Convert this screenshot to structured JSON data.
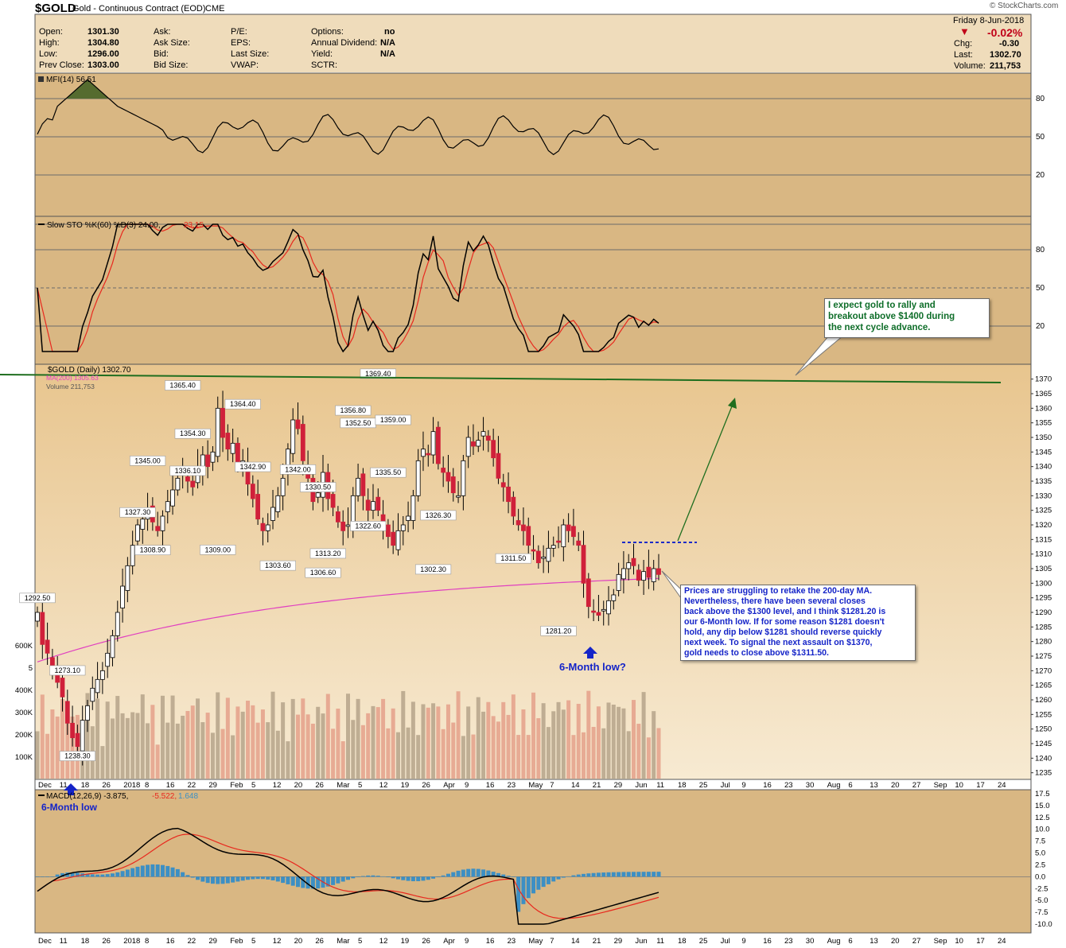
{
  "header": {
    "symbol": "$GOLD",
    "name": "Gold - Continuous Contract (EOD)",
    "exchange": "CME",
    "watermark": "© StockCharts.com",
    "quote": {
      "open_label": "Open:",
      "open": "1301.30",
      "high_label": "High:",
      "high": "1304.80",
      "low_label": "Low:",
      "low": "1296.00",
      "prev_label": "Prev Close:",
      "prev": "1303.00",
      "ask_label": "Ask:",
      "asksize_label": "Ask Size:",
      "bid_label": "Bid:",
      "bidsize_label": "Bid Size:",
      "pe_label": "P/E:",
      "eps_label": "EPS:",
      "lastsize_label": "Last Size:",
      "vwap_label": "VWAP:",
      "options_label": "Options:",
      "options": "no",
      "div_label": "Annual Dividend:",
      "div": "N/A",
      "yield_label": "Yield:",
      "yield": "N/A",
      "sctr_label": "SCTR:"
    },
    "right": {
      "date": "Friday   8-Jun-2018",
      "pct": "-0.02%",
      "chg_label": "Chg:",
      "chg": "-0.30",
      "last_label": "Last:",
      "last": "1302.70",
      "vol_label": "Volume:",
      "vol": "211,753"
    }
  },
  "colors": {
    "panel_bg": "#d9b783",
    "price_bg": "#efdcbb",
    "up_candle": "#ffffff",
    "down_candle": "#d0203a",
    "ma200": "#e040c0",
    "stoch_k": "#000000",
    "stoch_d": "#e8281e",
    "resistance": "#1f6e1f",
    "mfi_fill": "#556b2f",
    "macd_hist": "#3c8fc4",
    "note_green": "#0f6e2a",
    "note_blue": "#1524c8"
  },
  "chart_data": {
    "type": "candlestick",
    "x_labels": [
      "Dec",
      "11",
      "18",
      "26",
      "2018",
      "8",
      "16",
      "22",
      "29",
      "Feb",
      "5",
      "12",
      "20",
      "26",
      "Mar",
      "5",
      "12",
      "19",
      "26",
      "Apr",
      "9",
      "16",
      "23",
      "May",
      "7",
      "14",
      "21",
      "29",
      "Jun",
      "11",
      "18",
      "25",
      "Jul",
      "9",
      "16",
      "23",
      "30",
      "Aug",
      "6",
      "13",
      "20",
      "27",
      "Sep",
      "10",
      "17",
      "24"
    ],
    "price_axis": [
      1235,
      1240,
      1245,
      1250,
      1255,
      1260,
      1265,
      1270,
      1275,
      1280,
      1285,
      1290,
      1295,
      1300,
      1305,
      1310,
      1315,
      1320,
      1325,
      1330,
      1335,
      1340,
      1345,
      1350,
      1355,
      1360,
      1365,
      1370
    ],
    "price_range": [
      1233,
      1374
    ],
    "volume_axis": [
      "100K",
      "200K",
      "300K",
      "400K",
      "5",
      "600K"
    ],
    "closes": [
      1290,
      1279,
      1276,
      1270,
      1266,
      1261,
      1252,
      1247,
      1244,
      1253,
      1258,
      1264,
      1267,
      1270,
      1276,
      1282,
      1290,
      1299,
      1306,
      1313,
      1320,
      1322,
      1325,
      1321,
      1318,
      1323,
      1328,
      1332,
      1336,
      1338,
      1335,
      1333,
      1340,
      1344,
      1340,
      1345,
      1360,
      1350,
      1346,
      1348,
      1340,
      1342,
      1334,
      1329,
      1322,
      1318,
      1320,
      1326,
      1330,
      1336,
      1346,
      1356,
      1353,
      1342,
      1336,
      1328,
      1331,
      1338,
      1329,
      1326,
      1321,
      1318,
      1320,
      1330,
      1336,
      1330,
      1325,
      1328,
      1325,
      1320,
      1316,
      1313,
      1318,
      1320,
      1323,
      1330,
      1342,
      1346,
      1344,
      1352,
      1341,
      1338,
      1335,
      1331,
      1330,
      1342,
      1350,
      1347,
      1349,
      1352,
      1349,
      1343,
      1336,
      1333,
      1328,
      1323,
      1320,
      1318,
      1313,
      1311,
      1307,
      1309,
      1312,
      1313,
      1314,
      1320,
      1318,
      1316,
      1313,
      1300,
      1292,
      1290,
      1289,
      1291,
      1294,
      1296,
      1303,
      1305,
      1307,
      1306,
      1301,
      1304,
      1302,
      1305,
      1303
    ],
    "labels": [
      {
        "text": "1292.50"
      },
      {
        "text": "1273.10"
      },
      {
        "text": "1238.30"
      },
      {
        "text": "1327.30"
      },
      {
        "text": "1308.90"
      },
      {
        "text": "1345.00"
      },
      {
        "text": "1365.40"
      },
      {
        "text": "1354.30"
      },
      {
        "text": "1336.10"
      },
      {
        "text": "1364.40"
      },
      {
        "text": "1309.00"
      },
      {
        "text": "1342.90"
      },
      {
        "text": "1303.60"
      },
      {
        "text": "1342.00"
      },
      {
        "text": "1330.50"
      },
      {
        "text": "1313.20"
      },
      {
        "text": "1356.80"
      },
      {
        "text": "1306.60"
      },
      {
        "text": "1352.50"
      },
      {
        "text": "1322.60"
      },
      {
        "text": "1369.40"
      },
      {
        "text": "1359.00"
      },
      {
        "text": "1335.50"
      },
      {
        "text": "1326.30"
      },
      {
        "text": "1302.30"
      },
      {
        "text": "1311.50"
      },
      {
        "text": "1281.20"
      }
    ],
    "mfi": {
      "label": "MFI(14) 56.51",
      "levels": [
        "80",
        "50",
        "20"
      ]
    },
    "stoch": {
      "label": "Slow STO %K(60) %D(3) 24.00,",
      "label_d": "23.15",
      "levels": [
        "80",
        "50",
        "20"
      ]
    },
    "price_legend": {
      "title": "$GOLD (Daily) 1302.70",
      "ma": "MA(200) 1305.63",
      "volume": "Volume 211,753"
    },
    "macd": {
      "label": "MACD(12,26,9) -3.875,",
      "label_signal": "-5.522,",
      "label_hist": "1.648",
      "axis": [
        "17.5",
        "15.0",
        "12.5",
        "10.0",
        "7.5",
        "5.0",
        "2.5",
        "0.0",
        "-2.5",
        "-5.0",
        "-7.5",
        "-10.0"
      ],
      "range": [
        -11,
        18
      ]
    }
  },
  "annotations": {
    "top_note": "I expect gold to rally and\nbreakout above $1400 during\nthe next cycle advance.",
    "bottom_note": "Prices are struggling to retake the 200-day MA.\nNevertheless, there have been several closes\nback above the $1300 level, and I think $1281.20 is\nour 6-Month low. If for some reason $1281 doesn't\nhold, any dip below $1281 should reverse quickly\nnext week.  To signal the next assault on $1370,\ngold needs to close above $1311.50.",
    "six_month_low_q": "6-Month low?",
    "six_month_low": "6-Month low"
  }
}
